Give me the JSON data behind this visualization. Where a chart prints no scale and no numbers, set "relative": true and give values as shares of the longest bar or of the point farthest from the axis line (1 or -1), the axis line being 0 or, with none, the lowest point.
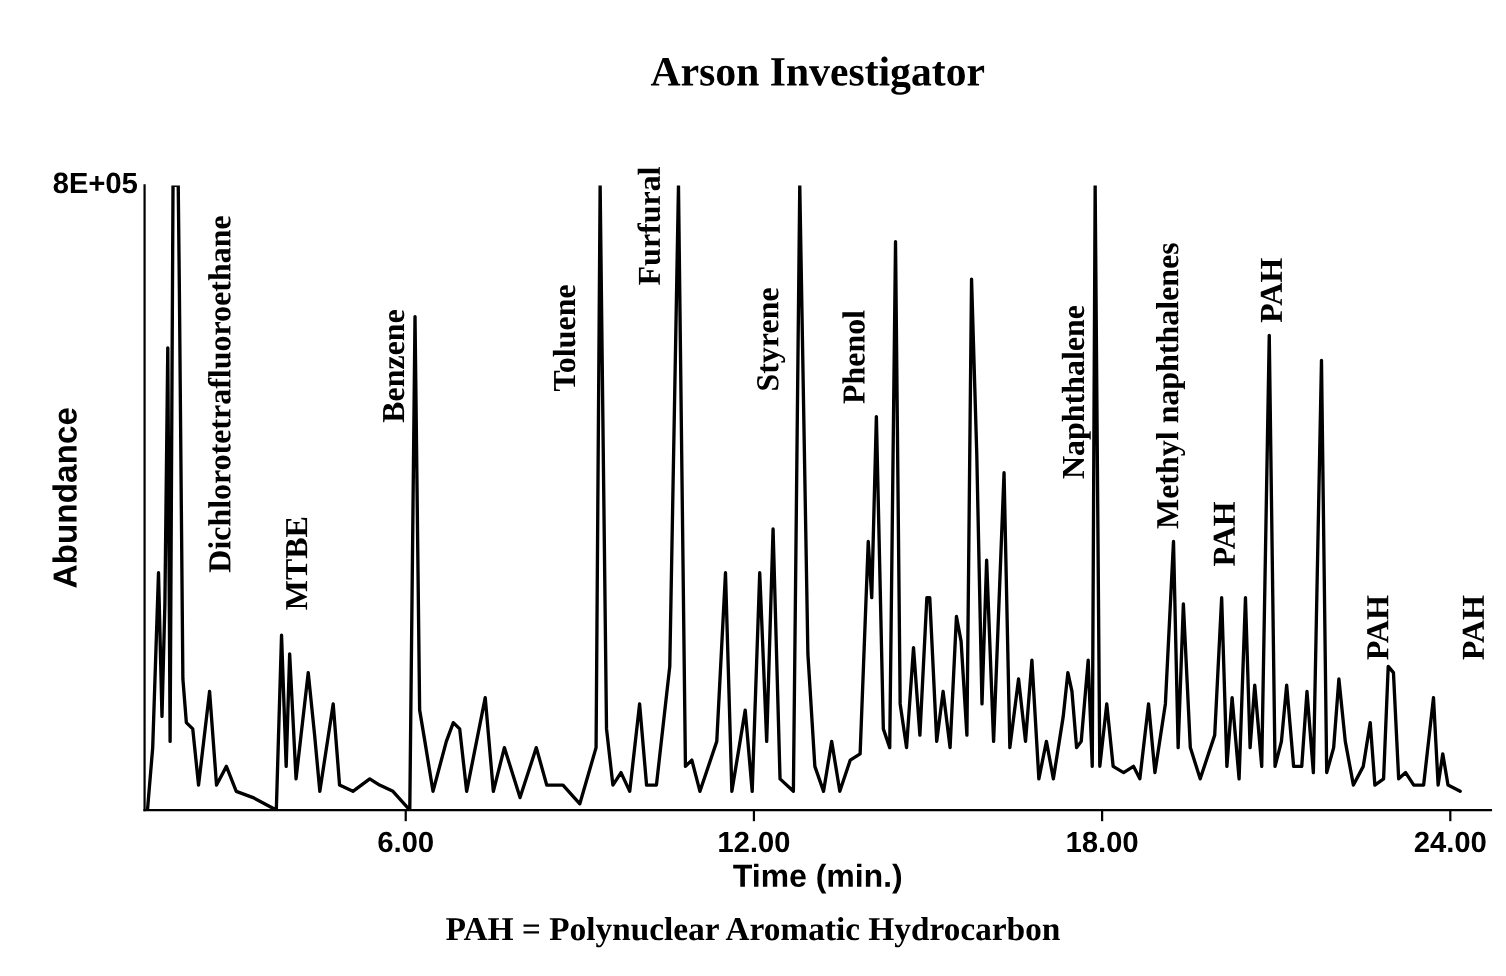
{
  "chart_data": {
    "type": "line",
    "title": "Arson Investigator",
    "xlabel": "Time (min.)",
    "ylabel": "Abundance",
    "relative": true,
    "xlim": [
      1.5,
      24.7
    ],
    "xticks": [
      {
        "value": 6,
        "label": "6.00"
      },
      {
        "value": 12,
        "label": "12.00"
      },
      {
        "value": 18,
        "label": "18.00"
      },
      {
        "value": 24,
        "label": "24.00"
      }
    ],
    "grid": false,
    "legend": false,
    "marker": "none",
    "line_style": "solid",
    "series": [
      {
        "color": "#000000",
        "x": [
          1.55,
          1.64,
          1.74,
          1.8,
          1.85,
          1.9,
          1.94,
          1.99,
          2.08,
          2.1,
          2.16,
          2.22,
          2.33,
          2.43,
          2.62,
          2.74,
          2.91,
          3.08,
          3.37,
          3.77,
          3.86,
          3.94,
          4.0,
          4.11,
          4.32,
          4.43,
          4.52,
          4.75,
          4.86,
          5.09,
          5.38,
          5.55,
          5.78,
          6.07,
          6.16,
          6.24,
          6.33,
          6.47,
          6.7,
          6.82,
          6.93,
          7.05,
          7.37,
          7.51,
          7.7,
          7.97,
          8.25,
          8.43,
          8.71,
          9.0,
          9.28,
          9.35,
          9.46,
          9.57,
          9.71,
          9.86,
          10.03,
          10.15,
          10.32,
          10.55,
          10.7,
          10.82,
          10.93,
          11.07,
          11.36,
          11.51,
          11.62,
          11.85,
          11.97,
          12.1,
          12.22,
          12.33,
          12.45,
          12.68,
          12.79,
          12.93,
          13.05,
          13.2,
          13.34,
          13.48,
          13.66,
          13.83,
          13.97,
          14.03,
          14.11,
          14.23,
          14.34,
          14.44,
          14.52,
          14.63,
          14.75,
          14.86,
          14.98,
          15.03,
          15.15,
          15.26,
          15.38,
          15.49,
          15.57,
          15.67,
          15.75,
          15.84,
          15.93,
          16.01,
          16.13,
          16.31,
          16.41,
          16.56,
          16.68,
          16.79,
          16.91,
          17.04,
          17.16,
          17.33,
          17.41,
          17.48,
          17.56,
          17.64,
          17.76,
          17.83,
          17.88,
          17.96,
          18.08,
          18.19,
          18.37,
          18.54,
          18.65,
          18.8,
          18.91,
          19.09,
          19.23,
          19.31,
          19.4,
          19.52,
          19.69,
          19.94,
          20.06,
          20.15,
          20.24,
          20.36,
          20.47,
          20.55,
          20.63,
          20.75,
          20.88,
          20.98,
          21.09,
          21.18,
          21.3,
          21.44,
          21.53,
          21.64,
          21.78,
          21.87,
          21.99,
          22.08,
          22.19,
          22.33,
          22.5,
          22.62,
          22.7,
          22.85,
          22.93,
          23.02,
          23.11,
          23.23,
          23.37,
          23.54,
          23.71,
          23.79,
          23.87,
          23.96,
          24.17
        ],
        "values": [
          0,
          0.1,
          0.38,
          0.15,
          0.33,
          0.74,
          0.11,
          1.0,
          1.0,
          0.83,
          0.21,
          0.14,
          0.13,
          0.04,
          0.19,
          0.04,
          0.07,
          0.03,
          0.02,
          0.0,
          0.28,
          0.07,
          0.25,
          0.05,
          0.22,
          0.12,
          0.03,
          0.17,
          0.04,
          0.03,
          0.05,
          0.04,
          0.03,
          0.0,
          0.79,
          0.16,
          0.11,
          0.03,
          0.11,
          0.14,
          0.13,
          0.03,
          0.18,
          0.03,
          0.1,
          0.02,
          0.1,
          0.04,
          0.04,
          0.01,
          0.1,
          1.0,
          0.13,
          0.04,
          0.06,
          0.03,
          0.17,
          0.04,
          0.04,
          0.23,
          1.0,
          0.07,
          0.08,
          0.03,
          0.11,
          0.38,
          0.03,
          0.16,
          0.03,
          0.38,
          0.11,
          0.45,
          0.05,
          0.03,
          1.0,
          0.25,
          0.07,
          0.03,
          0.11,
          0.03,
          0.08,
          0.09,
          0.43,
          0.34,
          0.63,
          0.13,
          0.1,
          0.91,
          0.17,
          0.1,
          0.26,
          0.12,
          0.34,
          0.34,
          0.11,
          0.19,
          0.1,
          0.31,
          0.27,
          0.12,
          0.85,
          0.57,
          0.17,
          0.4,
          0.11,
          0.54,
          0.1,
          0.21,
          0.11,
          0.24,
          0.05,
          0.11,
          0.05,
          0.15,
          0.22,
          0.19,
          0.1,
          0.11,
          0.24,
          0.07,
          1.0,
          0.07,
          0.17,
          0.07,
          0.06,
          0.07,
          0.05,
          0.17,
          0.06,
          0.17,
          0.43,
          0.1,
          0.33,
          0.1,
          0.05,
          0.12,
          0.34,
          0.07,
          0.18,
          0.05,
          0.34,
          0.1,
          0.2,
          0.07,
          0.76,
          0.07,
          0.11,
          0.2,
          0.07,
          0.07,
          0.19,
          0.06,
          0.72,
          0.06,
          0.1,
          0.21,
          0.11,
          0.04,
          0.07,
          0.14,
          0.04,
          0.05,
          0.23,
          0.22,
          0.05,
          0.06,
          0.04,
          0.04,
          0.18,
          0.04,
          0.09,
          0.04,
          0.03
        ]
      }
    ],
    "annotations": [
      "8E+05",
      "PAH = Polynuclear Aromatic Hydrocarbon",
      "Dichlorotetrafluoroethane",
      "MTBE",
      "Benzene",
      "Toluene",
      "Furfural",
      "Styrene",
      "Phenol",
      "Naphthalene",
      "Methyl naphthalenes",
      "PAH",
      "PAH",
      "PAH",
      "PAH"
    ]
  }
}
